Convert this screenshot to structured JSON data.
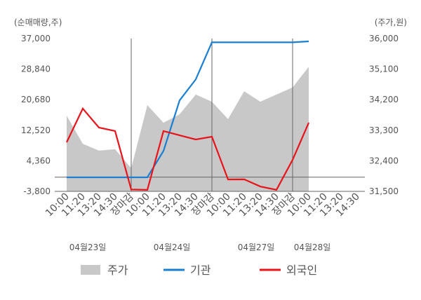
{
  "chart_data": {
    "type": "line",
    "y_unit_label": "(순매매량,주)",
    "y2_unit_label": "(주가,원)",
    "categories": [
      "10:00",
      "11:20",
      "13:20",
      "14:30",
      "장마감",
      "10:00",
      "11:20",
      "13:20",
      "14:30",
      "장마감",
      "10:00",
      "11:20",
      "13:20",
      "14:30",
      "장마감",
      "10:00",
      "11:20",
      "13:20",
      "14:30"
    ],
    "date_labels": [
      "04월23일",
      "04월24일",
      "04월27일",
      "04월28일"
    ],
    "series": [
      {
        "name": "주가",
        "color": "#c8c8c8",
        "axis": "y2",
        "kind": "area",
        "values": [
          33730,
          32900,
          32700,
          32740,
          32180,
          34040,
          33520,
          33770,
          34350,
          34140,
          33630,
          34450,
          34140,
          34350,
          34560,
          35170,
          null,
          null,
          null
        ]
      },
      {
        "name": "기관",
        "color": "#1a7fd0",
        "values": [
          -50,
          -50,
          -50,
          -50,
          -50,
          -50,
          7000,
          20500,
          26100,
          36000,
          36000,
          36000,
          36000,
          36000,
          36000,
          36250,
          null,
          null,
          null
        ]
      },
      {
        "name": "외국인",
        "color": "#e8141b",
        "values": [
          9300,
          18300,
          13230,
          12300,
          -3300,
          -3400,
          12300,
          11170,
          10050,
          10800,
          -620,
          -600,
          -2500,
          -3400,
          4620,
          14540,
          null,
          null,
          null
        ]
      }
    ],
    "ylim": [
      -3800,
      37000
    ],
    "yticks": [
      {
        "value": -3800,
        "label": "-3,800"
      },
      {
        "value": 4360,
        "label": "4,360"
      },
      {
        "value": 12520,
        "label": "12,520"
      },
      {
        "value": 20680,
        "label": "20,680"
      },
      {
        "value": 28840,
        "label": "28,840"
      },
      {
        "value": 37000,
        "label": "37,000"
      }
    ],
    "y2lim": [
      31500,
      36000
    ],
    "y2ticks": [
      {
        "value": 31500,
        "label": "31,500"
      },
      {
        "value": 32400,
        "label": "32,400"
      },
      {
        "value": 33300,
        "label": "33,300"
      },
      {
        "value": 34200,
        "label": "34,200"
      },
      {
        "value": 35100,
        "label": "35,100"
      },
      {
        "value": 36000,
        "label": "36,000"
      }
    ],
    "close_color": "#e8141b"
  }
}
